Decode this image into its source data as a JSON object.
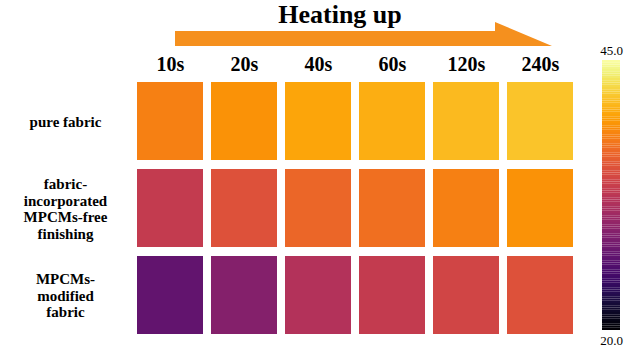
{
  "chart_data": {
    "type": "heatmap",
    "title": "Heating up",
    "x": [
      "10s",
      "20s",
      "40s",
      "60s",
      "120s",
      "240s"
    ],
    "categories": [
      "pure fabric",
      "fabric-incorporated MPCMs-free finishing",
      "MPCMs-modified fabric"
    ],
    "cells": [
      [
        38,
        39,
        40,
        40.5,
        41,
        41.5
      ],
      [
        33,
        35,
        36.5,
        37,
        38,
        39
      ],
      [
        27,
        29,
        32,
        33,
        34,
        35
      ]
    ],
    "color": "inferno",
    "colorbar": {
      "lim": [
        20,
        45
      ],
      "ticks": [
        {
          "value": 45,
          "label": "45.0"
        },
        {
          "value": 20,
          "label": "20.0"
        }
      ]
    }
  }
}
